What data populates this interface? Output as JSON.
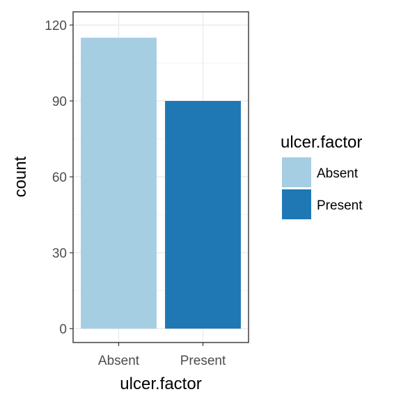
{
  "chart_data": {
    "type": "bar",
    "categories": [
      "Absent",
      "Present"
    ],
    "values": [
      115,
      90
    ],
    "colors": [
      "#a6cee3",
      "#1f78b4"
    ],
    "xlabel": "ulcer.factor",
    "ylabel": "count",
    "ylim": [
      0,
      120
    ],
    "yticks": [
      0,
      30,
      60,
      90,
      120
    ],
    "grid": true,
    "legend": {
      "title": "ulcer.factor",
      "position": "right",
      "items": [
        {
          "label": "Absent",
          "color": "#a6cee3"
        },
        {
          "label": "Present",
          "color": "#1f78b4"
        }
      ]
    }
  }
}
